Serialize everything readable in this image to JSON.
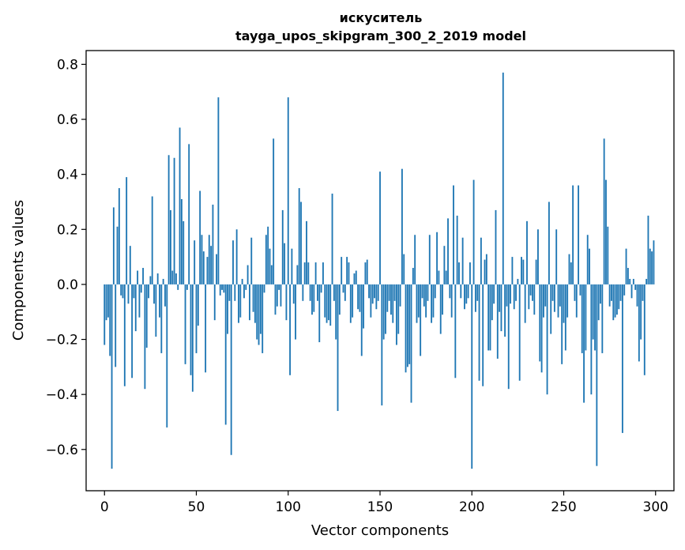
{
  "chart_data": {
    "type": "bar",
    "title_line1": "искуситель",
    "title_line2": "tayga_upos_skipgram_300_2_2019 model",
    "xlabel": "Vector components",
    "ylabel": "Components values",
    "xlim": [
      -10,
      310
    ],
    "ylim": [
      -0.75,
      0.85
    ],
    "xticks": [
      0,
      50,
      100,
      150,
      200,
      250,
      300
    ],
    "xtick_labels": [
      "0",
      "50",
      "100",
      "150",
      "200",
      "250",
      "300"
    ],
    "yticks": [
      -0.6,
      -0.4,
      -0.2,
      0.0,
      0.2,
      0.4,
      0.6,
      0.8
    ],
    "ytick_labels": [
      "−0.6",
      "−0.4",
      "−0.2",
      "0.0",
      "0.2",
      "0.4",
      "0.6",
      "0.8"
    ],
    "bar_color": "#1f77b4",
    "x": "0..299 (one bar per vector component)",
    "values": [
      -0.22,
      -0.13,
      -0.12,
      -0.26,
      -0.67,
      0.28,
      -0.3,
      0.21,
      0.35,
      -0.04,
      -0.05,
      -0.37,
      0.39,
      -0.07,
      0.14,
      -0.34,
      -0.05,
      -0.17,
      0.05,
      -0.12,
      -0.03,
      0.06,
      -0.38,
      -0.23,
      -0.05,
      0.03,
      0.32,
      -0.07,
      -0.19,
      0.04,
      -0.12,
      -0.25,
      0.02,
      -0.08,
      -0.52,
      0.47,
      0.27,
      0.05,
      0.46,
      0.04,
      -0.02,
      0.57,
      0.31,
      0.23,
      -0.29,
      -0.02,
      0.51,
      -0.33,
      -0.39,
      0.16,
      -0.25,
      -0.15,
      0.34,
      0.18,
      0.12,
      -0.32,
      0.1,
      0.18,
      0.14,
      0.29,
      -0.13,
      0.11,
      0.68,
      -0.04,
      -0.02,
      -0.03,
      -0.51,
      -0.18,
      -0.06,
      -0.62,
      0.16,
      -0.06,
      0.2,
      -0.14,
      -0.12,
      0.02,
      -0.05,
      -0.02,
      0.07,
      -0.13,
      0.17,
      -0.1,
      -0.14,
      -0.2,
      -0.22,
      -0.18,
      -0.25,
      -0.03,
      0.18,
      0.21,
      0.13,
      0.07,
      0.53,
      -0.11,
      -0.08,
      -0.02,
      -0.08,
      0.27,
      0.15,
      -0.13,
      0.68,
      -0.33,
      0.13,
      -0.07,
      -0.2,
      0.07,
      0.35,
      0.3,
      -0.06,
      0.08,
      0.23,
      0.08,
      -0.06,
      -0.11,
      -0.1,
      0.08,
      -0.06,
      -0.21,
      -0.03,
      0.08,
      -0.12,
      -0.14,
      -0.13,
      -0.15,
      0.33,
      -0.06,
      -0.2,
      -0.46,
      -0.11,
      0.1,
      -0.03,
      -0.06,
      0.1,
      0.08,
      -0.14,
      -0.12,
      0.04,
      0.05,
      -0.09,
      -0.1,
      -0.26,
      -0.16,
      0.08,
      0.09,
      -0.05,
      -0.12,
      -0.07,
      -0.05,
      -0.09,
      -0.06,
      0.41,
      -0.44,
      -0.2,
      -0.18,
      -0.1,
      -0.06,
      -0.11,
      -0.14,
      -0.06,
      -0.22,
      -0.18,
      -0.08,
      0.42,
      0.11,
      -0.32,
      -0.3,
      -0.29,
      -0.43,
      0.06,
      0.18,
      -0.14,
      -0.12,
      -0.26,
      -0.05,
      -0.08,
      -0.12,
      -0.06,
      0.18,
      -0.14,
      -0.12,
      -0.05,
      0.19,
      0.05,
      -0.18,
      -0.11,
      0.14,
      0.05,
      0.24,
      -0.05,
      -0.12,
      0.36,
      -0.34,
      0.25,
      0.08,
      -0.05,
      0.17,
      -0.09,
      -0.07,
      -0.05,
      0.08,
      -0.67,
      0.38,
      -0.1,
      -0.06,
      -0.35,
      0.17,
      -0.37,
      0.09,
      0.11,
      -0.24,
      -0.24,
      -0.13,
      -0.07,
      0.27,
      -0.27,
      -0.1,
      -0.17,
      0.77,
      -0.19,
      -0.08,
      -0.38,
      -0.07,
      0.1,
      -0.09,
      -0.06,
      0.02,
      -0.35,
      0.1,
      0.09,
      -0.14,
      0.23,
      -0.09,
      -0.04,
      -0.06,
      -0.11,
      0.09,
      0.2,
      -0.28,
      -0.32,
      -0.12,
      -0.08,
      -0.4,
      0.3,
      -0.18,
      -0.06,
      -0.1,
      0.2,
      -0.12,
      -0.08,
      -0.29,
      -0.14,
      -0.24,
      -0.12,
      0.11,
      0.08,
      0.36,
      -0.06,
      -0.12,
      0.36,
      -0.04,
      -0.25,
      -0.43,
      -0.24,
      0.18,
      0.13,
      -0.4,
      -0.2,
      -0.24,
      -0.66,
      -0.13,
      -0.07,
      -0.25,
      0.53,
      0.38,
      0.21,
      -0.08,
      -0.06,
      -0.13,
      -0.12,
      -0.11,
      -0.09,
      -0.06,
      -0.54,
      -0.04,
      0.13,
      0.06,
      0.02,
      -0.05,
      0.02,
      -0.02,
      -0.08,
      -0.28,
      -0.2,
      -0.06,
      -0.33,
      0.02,
      0.25,
      0.13,
      0.12,
      0.16
    ]
  }
}
